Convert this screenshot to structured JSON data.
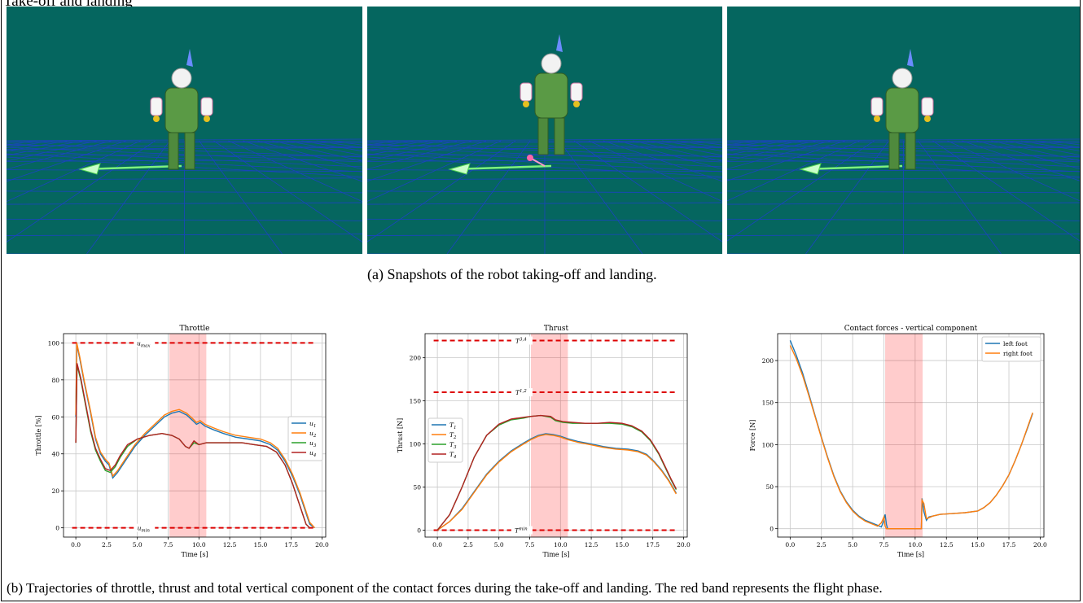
{
  "figure": {
    "label": "Take-off and landing",
    "caption_a": "(a) Snapshots of the robot taking-off and landing.",
    "caption_b": "(b) Trajectories of throttle, thrust and total vertical component of the contact forces during the take-off and landing. The red band represents the flight phase.",
    "snapshot_bg": "#05665f",
    "snapshots": [
      "robot standing on ground",
      "robot in flight",
      "robot landed"
    ]
  },
  "chart_data": [
    {
      "type": "line",
      "title": "Throttle",
      "xlabel": "Time [s]",
      "ylabel": "Throttle [%]",
      "xlim": [
        -1,
        20.3
      ],
      "ylim": [
        -5,
        105
      ],
      "xticks": [
        0.0,
        2.5,
        5.0,
        7.5,
        10.0,
        12.5,
        15.0,
        17.5,
        20.0
      ],
      "yticks": [
        0,
        20,
        40,
        60,
        80,
        100
      ],
      "flight_band": [
        7.6,
        10.6
      ],
      "limits": [
        {
          "y": 100,
          "label": "u_max",
          "sub": "max"
        },
        {
          "y": 0,
          "label": "u_min",
          "sub": "min"
        }
      ],
      "legend": "center-right",
      "series": [
        {
          "name": "u1",
          "color": "#1f77b4",
          "x": [
            0,
            0.08,
            0.3,
            0.7,
            1.2,
            1.6,
            2.0,
            2.4,
            2.7,
            3.0,
            3.4,
            4.0,
            4.8,
            5.6,
            6.4,
            7.2,
            7.8,
            8.4,
            9.0,
            9.5,
            9.8,
            10.1,
            10.5,
            11.2,
            12.0,
            13.0,
            14.0,
            15.0,
            15.8,
            16.4,
            17.0,
            17.6,
            18.2,
            18.7,
            19.0,
            19.4
          ],
          "y": [
            60,
            99,
            92,
            78,
            62,
            48,
            40,
            36,
            34,
            27,
            30,
            36,
            44,
            50,
            55,
            60,
            62,
            63,
            61,
            58,
            56,
            57,
            55,
            53,
            51,
            49,
            48,
            47,
            45,
            42,
            36,
            28,
            18,
            8,
            2,
            0
          ]
        },
        {
          "name": "u2",
          "color": "#ff7f0e",
          "x": [
            0,
            0.08,
            0.3,
            0.7,
            1.2,
            1.6,
            2.0,
            2.4,
            2.7,
            3.0,
            3.4,
            4.0,
            4.8,
            5.6,
            6.4,
            7.2,
            7.8,
            8.4,
            9.0,
            9.5,
            9.8,
            10.1,
            10.5,
            11.2,
            12.0,
            13.0,
            14.0,
            15.0,
            15.8,
            16.4,
            17.0,
            17.6,
            18.2,
            18.7,
            19.0,
            19.4
          ],
          "y": [
            61,
            100,
            93,
            79,
            63,
            49,
            41,
            37,
            35,
            28,
            31,
            37,
            45,
            51,
            56,
            61,
            63,
            64,
            62,
            59,
            57,
            58,
            56,
            54,
            52,
            50,
            49,
            48,
            46,
            43,
            37,
            29,
            19,
            9,
            3,
            0
          ]
        },
        {
          "name": "u3",
          "color": "#2ca02c",
          "x": [
            0,
            0.1,
            0.4,
            0.8,
            1.2,
            1.6,
            2.0,
            2.4,
            2.8,
            3.2,
            3.6,
            4.2,
            5.0,
            6.0,
            7.0,
            7.8,
            8.4,
            8.9,
            9.2,
            9.6,
            10.0,
            10.6,
            11.5,
            12.5,
            13.5,
            14.5,
            15.5,
            16.3,
            17.0,
            17.6,
            18.0,
            18.4,
            18.7,
            19.0
          ],
          "y": [
            46,
            88,
            80,
            66,
            52,
            42,
            36,
            31,
            30,
            33,
            38,
            44,
            48,
            50,
            51,
            50,
            48,
            44,
            43,
            46,
            45,
            46,
            46,
            46,
            46,
            45,
            44,
            41,
            34,
            24,
            16,
            8,
            2,
            0
          ]
        },
        {
          "name": "u4",
          "color": "#b22222",
          "x": [
            0,
            0.1,
            0.4,
            0.8,
            1.2,
            1.6,
            2.0,
            2.4,
            2.8,
            3.2,
            3.6,
            4.2,
            5.0,
            6.0,
            7.0,
            7.8,
            8.4,
            8.9,
            9.2,
            9.6,
            10.0,
            10.6,
            11.5,
            12.5,
            13.5,
            14.5,
            15.5,
            16.3,
            17.0,
            17.6,
            18.0,
            18.4,
            18.7,
            19.0
          ],
          "y": [
            46,
            89,
            81,
            67,
            53,
            43,
            37,
            32,
            31,
            34,
            39,
            45,
            48,
            50,
            51,
            50,
            48,
            44,
            43,
            47,
            45,
            46,
            46,
            46,
            46,
            45,
            44,
            41,
            34,
            24,
            16,
            8,
            2,
            0
          ]
        }
      ]
    },
    {
      "type": "line",
      "title": "Thrust",
      "xlabel": "Time [s]",
      "ylabel": "Thrust [N]",
      "xlim": [
        -1,
        20.3
      ],
      "ylim": [
        -8,
        228
      ],
      "xticks": [
        0.0,
        2.5,
        5.0,
        7.5,
        10.0,
        12.5,
        15.0,
        17.5,
        20.0
      ],
      "yticks": [
        0,
        50,
        100,
        150,
        200
      ],
      "flight_band": [
        7.6,
        10.6
      ],
      "limits": [
        {
          "y": 220,
          "label": "T_3,4^max",
          "sub": "3,4"
        },
        {
          "y": 160,
          "label": "T_1,2^max",
          "sub": "1,2"
        },
        {
          "y": 0,
          "label": "T^min",
          "sub": "min"
        }
      ],
      "legend": "center-left",
      "series": [
        {
          "name": "T1",
          "color": "#1f77b4",
          "x": [
            0,
            1,
            2,
            3,
            4,
            5,
            6,
            7,
            7.6,
            8.2,
            8.8,
            9.4,
            10.0,
            10.6,
            11.4,
            12.5,
            13.5,
            14.5,
            15.5,
            16.3,
            17.0,
            17.6,
            18.2,
            18.8,
            19.4
          ],
          "y": [
            0,
            10,
            25,
            45,
            65,
            80,
            92,
            101,
            106,
            110,
            112,
            111,
            109,
            106,
            103,
            100,
            97,
            95,
            94,
            92,
            88,
            80,
            70,
            58,
            43
          ]
        },
        {
          "name": "T2",
          "color": "#ff7f0e",
          "x": [
            0,
            1,
            2,
            3,
            4,
            5,
            6,
            7,
            7.6,
            8.2,
            8.8,
            9.4,
            10.0,
            10.6,
            11.4,
            12.5,
            13.5,
            14.5,
            15.5,
            16.3,
            17.0,
            17.6,
            18.2,
            18.8,
            19.4
          ],
          "y": [
            0,
            10,
            24,
            44,
            64,
            79,
            91,
            100,
            105,
            109,
            111,
            110,
            108,
            105,
            102,
            99,
            96,
            94,
            93,
            91,
            87,
            79,
            69,
            57,
            42
          ]
        },
        {
          "name": "T3",
          "color": "#2ca02c",
          "x": [
            0,
            1,
            2,
            3,
            4,
            5,
            6,
            7,
            7.6,
            8.4,
            9.2,
            9.6,
            10.2,
            11.0,
            12.0,
            13.0,
            14.0,
            15.0,
            15.8,
            16.6,
            17.3,
            18.0,
            18.6,
            19.0,
            19.4
          ],
          "y": [
            0,
            18,
            50,
            85,
            110,
            122,
            128,
            130,
            132,
            133,
            131,
            127,
            125,
            124,
            124,
            124,
            124,
            123,
            120,
            114,
            104,
            88,
            70,
            58,
            47
          ]
        },
        {
          "name": "T4",
          "color": "#b22222",
          "x": [
            0,
            1,
            2,
            3,
            4,
            5,
            6,
            7,
            7.6,
            8.4,
            9.2,
            9.6,
            10.2,
            11.0,
            12.0,
            13.0,
            14.0,
            15.0,
            15.8,
            16.6,
            17.3,
            18.0,
            18.6,
            19.0,
            19.4
          ],
          "y": [
            0,
            18,
            50,
            85,
            110,
            123,
            129,
            131,
            132,
            133,
            132,
            128,
            126,
            125,
            124,
            124,
            125,
            124,
            121,
            115,
            105,
            89,
            71,
            59,
            48
          ]
        }
      ]
    },
    {
      "type": "line",
      "title": "Contact forces - vertical component",
      "xlabel": "Time [s]",
      "ylabel": "Force [N]",
      "xlim": [
        -1,
        20.3
      ],
      "ylim": [
        -10,
        232
      ],
      "xticks": [
        0.0,
        2.5,
        5.0,
        7.5,
        10.0,
        12.5,
        15.0,
        17.5,
        20.0
      ],
      "yticks": [
        0,
        50,
        100,
        150,
        200
      ],
      "flight_band": [
        7.6,
        10.6
      ],
      "legend": "upper-right",
      "series": [
        {
          "name": "left foot",
          "color": "#1f77b4",
          "x": [
            0,
            0.5,
            1.0,
            1.5,
            2.0,
            2.5,
            3.0,
            3.5,
            4.0,
            4.5,
            5.0,
            5.5,
            6.0,
            6.5,
            7.0,
            7.3,
            7.5,
            7.6,
            7.7,
            7.8,
            10.5,
            10.55,
            10.7,
            10.9,
            11.1,
            11.4,
            12.0,
            13.0,
            14.0,
            15.0,
            15.5,
            16.0,
            16.5,
            17.0,
            17.5,
            18.0,
            18.5,
            19.0,
            19.4
          ],
          "y": [
            224,
            206,
            185,
            160,
            134,
            109,
            85,
            63,
            45,
            32,
            22,
            15,
            10,
            7,
            4,
            2,
            10,
            17,
            5,
            0,
            0,
            36,
            20,
            10,
            14,
            15,
            17,
            18,
            19,
            21,
            25,
            31,
            40,
            51,
            64,
            81,
            100,
            120,
            137
          ]
        },
        {
          "name": "right foot",
          "color": "#ff7f0e",
          "x": [
            0,
            0.5,
            1.0,
            1.5,
            2.0,
            2.5,
            3.0,
            3.5,
            4.0,
            4.5,
            5.0,
            5.5,
            6.0,
            6.5,
            7.0,
            7.3,
            7.5,
            7.6,
            7.7,
            7.8,
            10.5,
            10.55,
            10.7,
            10.9,
            11.1,
            11.4,
            12.0,
            13.0,
            14.0,
            15.0,
            15.5,
            16.0,
            16.5,
            17.0,
            17.5,
            18.0,
            18.5,
            19.0,
            19.4
          ],
          "y": [
            218,
            202,
            182,
            158,
            133,
            108,
            84,
            62,
            44,
            31,
            21,
            14,
            9,
            6,
            3,
            7,
            14,
            3,
            0,
            0,
            0,
            34,
            30,
            12,
            13,
            15,
            17,
            18,
            19,
            21,
            25,
            31,
            40,
            51,
            64,
            81,
            100,
            121,
            138
          ]
        }
      ]
    }
  ]
}
